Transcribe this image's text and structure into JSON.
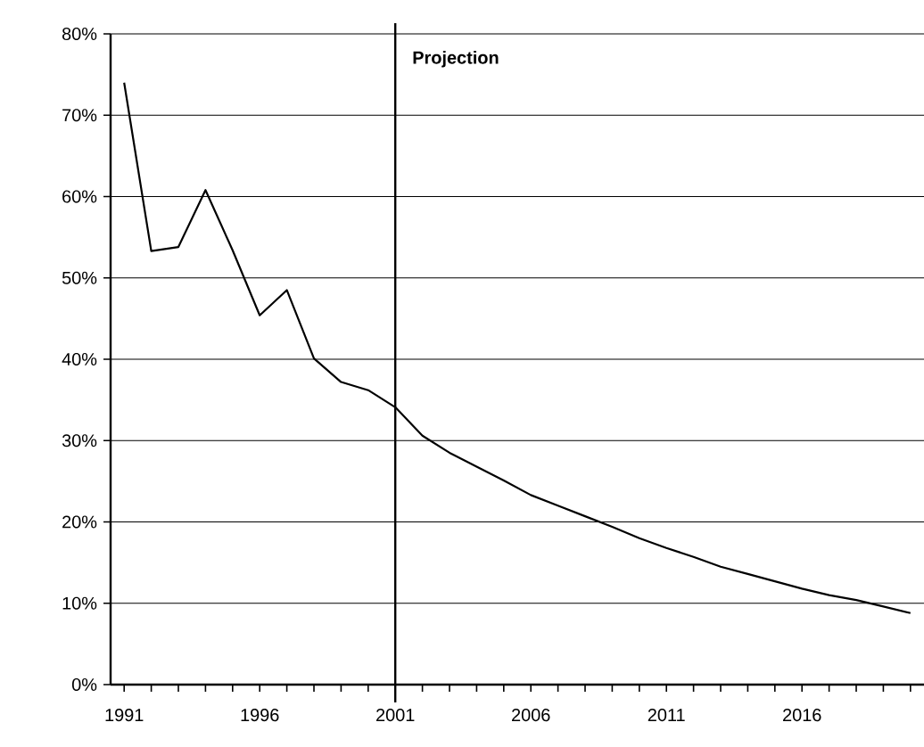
{
  "chart_data": {
    "type": "line",
    "color": "#000000",
    "x": [
      1991,
      1992,
      1993,
      1994,
      1995,
      1996,
      1997,
      1998,
      1999,
      2000,
      2001,
      2002,
      2003,
      2004,
      2005,
      2006,
      2007,
      2008,
      2009,
      2010,
      2011,
      2012,
      2013,
      2014,
      2015,
      2016,
      2017,
      2018,
      2019,
      2020
    ],
    "values": [
      74,
      53.3,
      53.8,
      60.8,
      53.4,
      45.4,
      48.5,
      40.1,
      37.2,
      36.2,
      34.1,
      30.6,
      28.5,
      26.8,
      25.1,
      23.3,
      22.0,
      20.7,
      19.4,
      18.0,
      16.8,
      15.7,
      14.5,
      13.6,
      12.7,
      11.8,
      11.0,
      10.4,
      9.6,
      8.8
    ],
    "xlim": [
      1990.5,
      2020.5
    ],
    "xticks": [
      1991,
      {
        "value": 1992,
        "label": null
      },
      {
        "value": 1993,
        "label": null
      },
      {
        "value": 1994,
        "label": null
      },
      {
        "value": 1995,
        "label": null
      },
      1996,
      {
        "value": 1997,
        "label": null
      },
      {
        "value": 1998,
        "label": null
      },
      {
        "value": 1999,
        "label": null
      },
      {
        "value": 2000,
        "label": null
      },
      2001,
      {
        "value": 2002,
        "label": null
      },
      {
        "value": 2003,
        "label": null
      },
      {
        "value": 2004,
        "label": null
      },
      {
        "value": 2005,
        "label": null
      },
      2006,
      {
        "value": 2007,
        "label": null
      },
      {
        "value": 2008,
        "label": null
      },
      {
        "value": 2009,
        "label": null
      },
      {
        "value": 2010,
        "label": null
      },
      2011,
      {
        "value": 2012,
        "label": null
      },
      {
        "value": 2013,
        "label": null
      },
      {
        "value": 2014,
        "label": null
      },
      {
        "value": 2015,
        "label": null
      },
      2016,
      {
        "value": 2017,
        "label": null
      },
      {
        "value": 2018,
        "label": null
      },
      {
        "value": 2019,
        "label": null
      },
      {
        "value": 2020,
        "label": null
      }
    ],
    "ylim": [
      0,
      80
    ],
    "yticks": [
      {
        "value": 0,
        "label": "0%"
      },
      {
        "value": 10,
        "label": "10%"
      },
      {
        "value": 20,
        "label": "20%"
      },
      {
        "value": 30,
        "label": "30%"
      },
      {
        "value": 40,
        "label": "40%"
      },
      {
        "value": 50,
        "label": "50%"
      },
      {
        "value": 60,
        "label": "60%"
      },
      {
        "value": 70,
        "label": "70%"
      },
      {
        "value": 80,
        "label": "80%"
      }
    ],
    "grid": "y",
    "marker": "none",
    "line_style": "solid",
    "ref_lines": [
      {
        "axis": "x",
        "value": 2001,
        "label": "Projection",
        "color": "#000000"
      }
    ]
  }
}
